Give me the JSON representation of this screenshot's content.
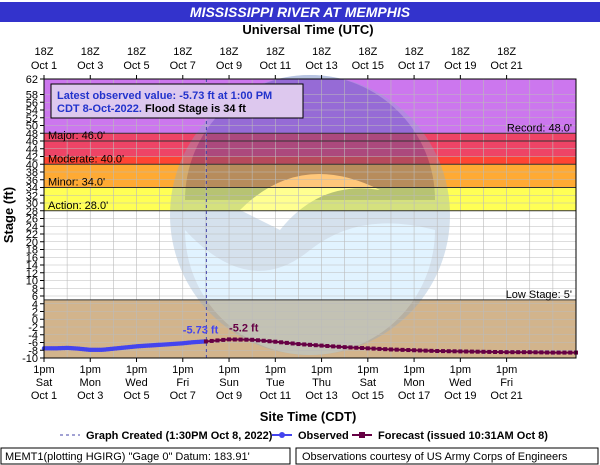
{
  "header": {
    "title": "MISSISSIPPI RIVER AT MEMPHIS",
    "top_axis_title": "Universal Time (UTC)",
    "bottom_axis_title": "Site Time (CDT)",
    "y_axis_title": "Stage (ft)"
  },
  "info_box": {
    "line1": "Latest observed value: -5.73 ft at 1:00 PM",
    "line2a": "CDT 8-Oct-2022.",
    "line2b": " Flood Stage is 34 ft"
  },
  "legend": {
    "created": "Graph Created (1:30PM Oct 8, 2022)",
    "observed": "Observed",
    "forecast": "Forecast (issued 10:31AM Oct 8)"
  },
  "footer": {
    "left": "MEMT1(plotting HGIRG) \"Gage 0\" Datum: 183.91'",
    "right": "Observations courtesy of US Army Corps of Engineers"
  },
  "colors": {
    "title_bg": "#3333cc",
    "record": "#cc77ee",
    "major": "#ee4466",
    "moderate": "#ff4433",
    "minor": "#ffaa33",
    "action": "#ffff55",
    "low": "#d2b48c",
    "observed": "#4444ee",
    "forecast": "#660044",
    "grid": "#bbbbbb"
  },
  "chart_data": {
    "type": "line",
    "ylim": [
      -10,
      62
    ],
    "y_ticks": [
      -10,
      -8,
      -6,
      -4,
      -2,
      0,
      2,
      4,
      6,
      8,
      10,
      12,
      14,
      16,
      18,
      20,
      22,
      24,
      26,
      28,
      30,
      32,
      34,
      36,
      38,
      40,
      42,
      44,
      46,
      48,
      50,
      52,
      54,
      56,
      58,
      62
    ],
    "y_tick_labels": [
      "-10",
      "-8",
      "-6",
      "-4",
      "-2",
      "0",
      "2",
      "4",
      "6",
      "8",
      "10",
      "12",
      "14",
      "16",
      "18",
      "20",
      "22",
      "24",
      "26",
      "28",
      "30",
      "32",
      "34",
      "36",
      "38",
      "40",
      "42",
      "44",
      "46",
      "48",
      "50",
      "52",
      "54",
      "56",
      "58",
      "62"
    ],
    "xlim": [
      0,
      23
    ],
    "x_unit": "days after 1pm Oct 1 (CDT)",
    "bottom_ticks": [
      {
        "x": 0,
        "l1": "1pm",
        "l2": "Sat",
        "l3": "Oct 1"
      },
      {
        "x": 2,
        "l1": "1pm",
        "l2": "Mon",
        "l3": "Oct 3"
      },
      {
        "x": 4,
        "l1": "1pm",
        "l2": "Wed",
        "l3": "Oct 5"
      },
      {
        "x": 6,
        "l1": "1pm",
        "l2": "Fri",
        "l3": "Oct 7"
      },
      {
        "x": 8,
        "l1": "1pm",
        "l2": "Sun",
        "l3": "Oct 9"
      },
      {
        "x": 10,
        "l1": "1pm",
        "l2": "Tue",
        "l3": "Oct 11"
      },
      {
        "x": 12,
        "l1": "1pm",
        "l2": "Thu",
        "l3": "Oct 13"
      },
      {
        "x": 14,
        "l1": "1pm",
        "l2": "Sat",
        "l3": "Oct 15"
      },
      {
        "x": 16,
        "l1": "1pm",
        "l2": "Mon",
        "l3": "Oct 17"
      },
      {
        "x": 18,
        "l1": "1pm",
        "l2": "Wed",
        "l3": "Oct 19"
      },
      {
        "x": 20,
        "l1": "1pm",
        "l2": "Fri",
        "l3": "Oct 21"
      }
    ],
    "top_ticks": [
      {
        "x": 0,
        "l1": "18Z",
        "l2": "Oct 1"
      },
      {
        "x": 2,
        "l1": "18Z",
        "l2": "Oct 3"
      },
      {
        "x": 4,
        "l1": "18Z",
        "l2": "Oct 5"
      },
      {
        "x": 6,
        "l1": "18Z",
        "l2": "Oct 7"
      },
      {
        "x": 8,
        "l1": "18Z",
        "l2": "Oct 9"
      },
      {
        "x": 10,
        "l1": "18Z",
        "l2": "Oct 11"
      },
      {
        "x": 12,
        "l1": "18Z",
        "l2": "Oct 13"
      },
      {
        "x": 14,
        "l1": "18Z",
        "l2": "Oct 15"
      },
      {
        "x": 16,
        "l1": "18Z",
        "l2": "Oct 17"
      },
      {
        "x": 18,
        "l1": "18Z",
        "l2": "Oct 19"
      },
      {
        "x": 20,
        "l1": "18Z",
        "l2": "Oct 21"
      }
    ],
    "categories": [
      {
        "name": "record",
        "from": 48,
        "to": 62,
        "label": "Record: 48.0'",
        "align": "right"
      },
      {
        "name": "major",
        "from": 46,
        "to": 48,
        "label": "Major: 46.0'",
        "align": "left"
      },
      {
        "name": "major",
        "from": 40,
        "to": 46,
        "label": "",
        "align": "left"
      },
      {
        "name": "moderate",
        "from": 40,
        "to": 42,
        "label": "Moderate: 40.0'",
        "align": "left"
      },
      {
        "name": "minor",
        "from": 34,
        "to": 40,
        "label": "Minor: 34.0'",
        "align": "left"
      },
      {
        "name": "action",
        "from": 28,
        "to": 34,
        "label": "Action: 28.0'",
        "align": "left"
      },
      {
        "name": "low",
        "from": -10,
        "to": 5,
        "label": "Low Stage: 5'",
        "align": "right"
      }
    ],
    "created_x": 7.02,
    "series": [
      {
        "name": "Observed",
        "x": [
          0.0,
          0.5,
          1.0,
          1.5,
          2.0,
          2.5,
          3.0,
          3.5,
          4.0,
          4.5,
          5.0,
          5.5,
          6.0,
          6.5,
          7.0
        ],
        "y": [
          -7.5,
          -7.5,
          -7.4,
          -7.6,
          -7.9,
          -7.9,
          -7.6,
          -7.3,
          -7.0,
          -6.8,
          -6.6,
          -6.4,
          -6.2,
          -5.9,
          -5.73
        ],
        "label": "-5.73 ft",
        "label_x": 6.0,
        "label_y": -3.7
      },
      {
        "name": "Forecast",
        "x": [
          7.0,
          8.0,
          9.0,
          10.0,
          11.0,
          12.0,
          13.0,
          14.0,
          15.0,
          16.0,
          17.0,
          18.0,
          19.0,
          20.0,
          21.0,
          22.0,
          23.0
        ],
        "y": [
          -5.73,
          -5.2,
          -5.3,
          -5.8,
          -6.4,
          -6.8,
          -7.2,
          -7.5,
          -7.8,
          -8.0,
          -8.2,
          -8.3,
          -8.4,
          -8.5,
          -8.5,
          -8.6,
          -8.6
        ],
        "label": "-5.2 ft",
        "label_x": 8.0,
        "label_y": -3.2
      }
    ]
  }
}
